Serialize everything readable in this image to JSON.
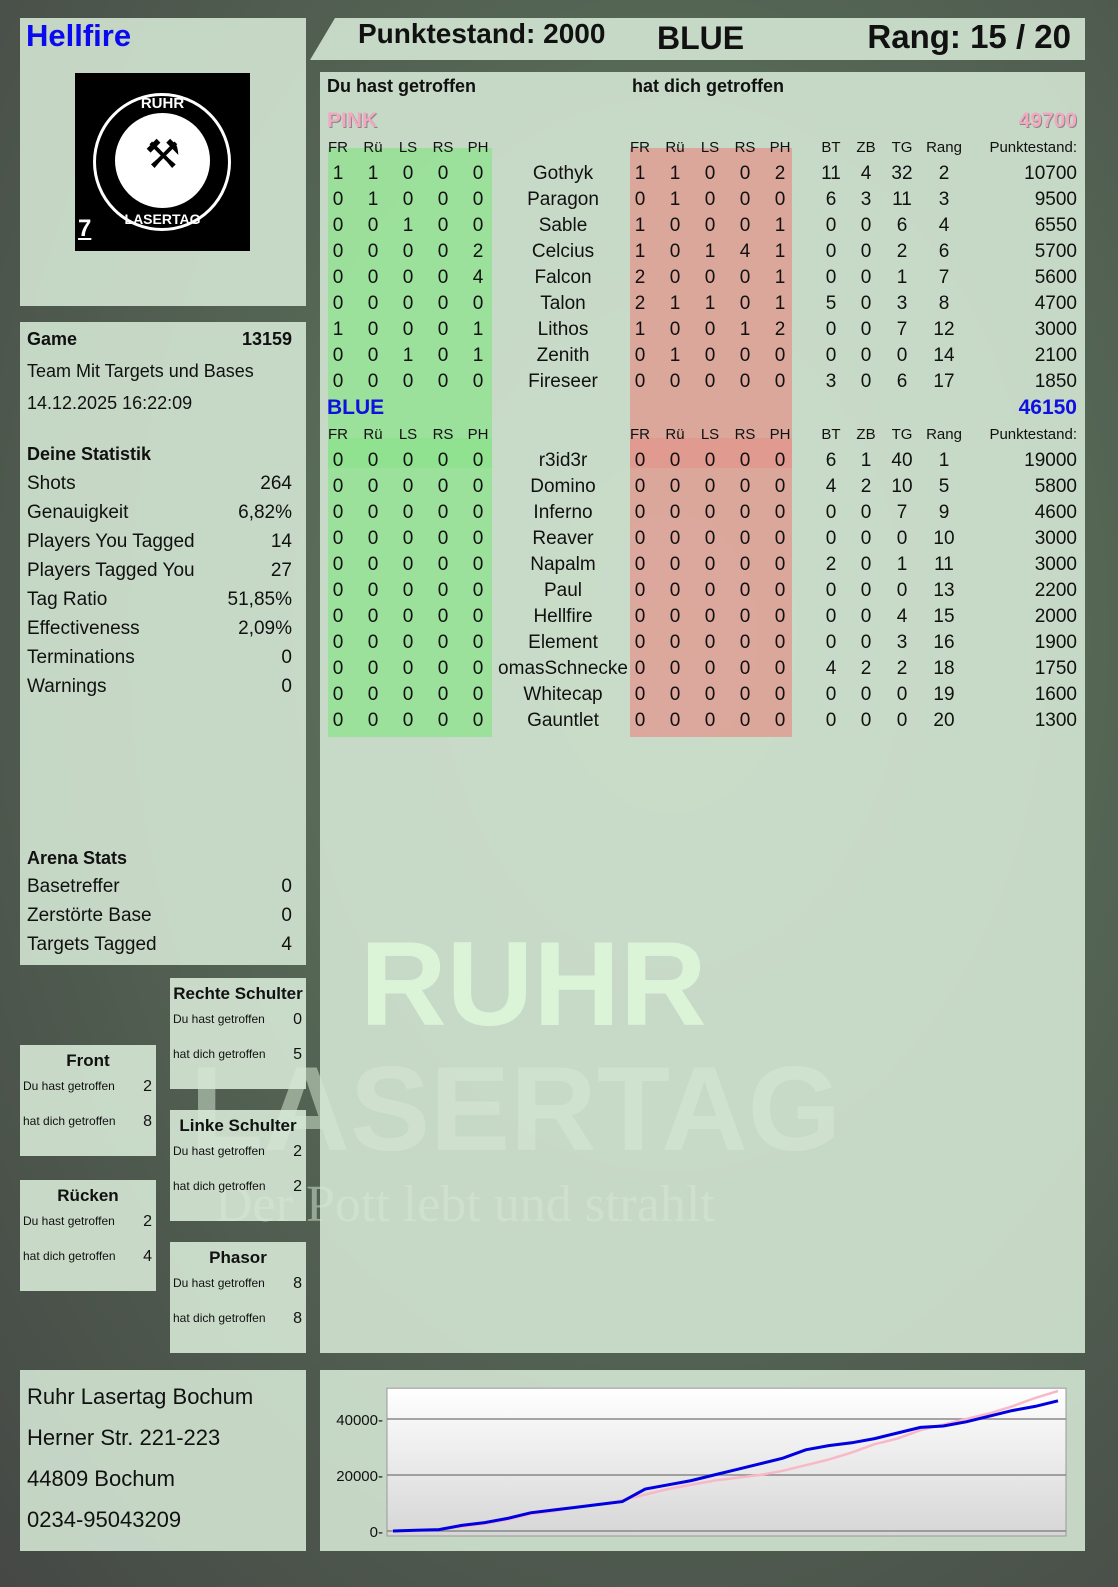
{
  "player": {
    "name": "Hellfire",
    "score_label": "Punktestand: 2000",
    "team": "BLUE",
    "rank_label": "Rang: 15 / 20"
  },
  "logo": {
    "top": "RUHR",
    "bottom": "LASERTAG",
    "badge": "7"
  },
  "watermark": {
    "line1": "RUHR",
    "line2": "LASERTAG",
    "slogan": "Der Pott lebt und strahlt"
  },
  "main": {
    "you_hit": "Du hast getroffen",
    "hit_you": "hat dich getroffen",
    "columns_hit": [
      "FR",
      "Rü",
      "LS",
      "RS",
      "PH"
    ],
    "columns_stats": [
      "BT",
      "ZB",
      "TG",
      "Rang",
      "Punktestand:"
    ],
    "teams": [
      {
        "name": "PINK",
        "total": "49700",
        "color": "#f2a8c0",
        "players": [
          [
            "1",
            "1",
            "0",
            "0",
            "0",
            "Gothyk",
            "1",
            "1",
            "0",
            "0",
            "2",
            "11",
            "4",
            "32",
            "2",
            "10700"
          ],
          [
            "0",
            "1",
            "0",
            "0",
            "0",
            "Paragon",
            "0",
            "1",
            "0",
            "0",
            "0",
            "6",
            "3",
            "11",
            "3",
            "9500"
          ],
          [
            "0",
            "0",
            "1",
            "0",
            "0",
            "Sable",
            "1",
            "0",
            "0",
            "0",
            "1",
            "0",
            "0",
            "6",
            "4",
            "6550"
          ],
          [
            "0",
            "0",
            "0",
            "0",
            "2",
            "Celcius",
            "1",
            "0",
            "1",
            "4",
            "1",
            "0",
            "0",
            "2",
            "6",
            "5700"
          ],
          [
            "0",
            "0",
            "0",
            "0",
            "4",
            "Falcon",
            "2",
            "0",
            "0",
            "0",
            "1",
            "0",
            "0",
            "1",
            "7",
            "5600"
          ],
          [
            "0",
            "0",
            "0",
            "0",
            "0",
            "Talon",
            "2",
            "1",
            "1",
            "0",
            "1",
            "5",
            "0",
            "3",
            "8",
            "4700"
          ],
          [
            "1",
            "0",
            "0",
            "0",
            "1",
            "Lithos",
            "1",
            "0",
            "0",
            "1",
            "2",
            "0",
            "0",
            "7",
            "12",
            "3000"
          ],
          [
            "0",
            "0",
            "1",
            "0",
            "1",
            "Zenith",
            "0",
            "1",
            "0",
            "0",
            "0",
            "0",
            "0",
            "0",
            "14",
            "2100"
          ],
          [
            "0",
            "0",
            "0",
            "0",
            "0",
            "Fireseer",
            "0",
            "0",
            "0",
            "0",
            "0",
            "3",
            "0",
            "6",
            "17",
            "1850"
          ]
        ]
      },
      {
        "name": "BLUE",
        "total": "46150",
        "color": "#1010e0",
        "players": [
          [
            "0",
            "0",
            "0",
            "0",
            "0",
            "r3id3r",
            "0",
            "0",
            "0",
            "0",
            "0",
            "6",
            "1",
            "40",
            "1",
            "19000"
          ],
          [
            "0",
            "0",
            "0",
            "0",
            "0",
            "Domino",
            "0",
            "0",
            "0",
            "0",
            "0",
            "4",
            "2",
            "10",
            "5",
            "5800"
          ],
          [
            "0",
            "0",
            "0",
            "0",
            "0",
            "Inferno",
            "0",
            "0",
            "0",
            "0",
            "0",
            "0",
            "0",
            "7",
            "9",
            "4600"
          ],
          [
            "0",
            "0",
            "0",
            "0",
            "0",
            "Reaver",
            "0",
            "0",
            "0",
            "0",
            "0",
            "0",
            "0",
            "0",
            "10",
            "3000"
          ],
          [
            "0",
            "0",
            "0",
            "0",
            "0",
            "Napalm",
            "0",
            "0",
            "0",
            "0",
            "0",
            "2",
            "0",
            "1",
            "11",
            "3000"
          ],
          [
            "0",
            "0",
            "0",
            "0",
            "0",
            "Paul",
            "0",
            "0",
            "0",
            "0",
            "0",
            "0",
            "0",
            "0",
            "13",
            "2200"
          ],
          [
            "0",
            "0",
            "0",
            "0",
            "0",
            "Hellfire",
            "0",
            "0",
            "0",
            "0",
            "0",
            "0",
            "0",
            "4",
            "15",
            "2000"
          ],
          [
            "0",
            "0",
            "0",
            "0",
            "0",
            "Element",
            "0",
            "0",
            "0",
            "0",
            "0",
            "0",
            "0",
            "3",
            "16",
            "1900"
          ],
          [
            "0",
            "0",
            "0",
            "0",
            "0",
            "omasSchnecke",
            "0",
            "0",
            "0",
            "0",
            "0",
            "4",
            "2",
            "2",
            "18",
            "1750"
          ],
          [
            "0",
            "0",
            "0",
            "0",
            "0",
            "Whitecap",
            "0",
            "0",
            "0",
            "0",
            "0",
            "0",
            "0",
            "0",
            "19",
            "1600"
          ],
          [
            "0",
            "0",
            "0",
            "0",
            "0",
            "Gauntlet",
            "0",
            "0",
            "0",
            "0",
            "0",
            "0",
            "0",
            "0",
            "20",
            "1300"
          ]
        ]
      }
    ]
  },
  "game": {
    "label": "Game",
    "id": "13159",
    "mode": "Team Mit Targets und Bases",
    "datetime": "14.12.2025 16:22:09"
  },
  "stats": {
    "title": "Deine Statistik",
    "items": [
      [
        "Shots",
        "264"
      ],
      [
        "Genauigkeit",
        "6,82%"
      ],
      [
        "Players You Tagged",
        "14"
      ],
      [
        "Players Tagged You",
        "27"
      ],
      [
        "Tag Ratio",
        "51,85%"
      ],
      [
        "Effectiveness",
        "2,09%"
      ],
      [
        "Terminations",
        "0"
      ],
      [
        "Warnings",
        "0"
      ]
    ]
  },
  "arena": {
    "title": "Arena Stats",
    "items": [
      [
        "Basetreffer",
        "0"
      ],
      [
        "Zerstörte Base",
        "0"
      ],
      [
        "Targets Tagged",
        "4"
      ]
    ]
  },
  "zones": [
    {
      "title": "Front",
      "you_hit_label": "Du hast getroffen",
      "you_hit": "2",
      "hit_you_label": "hat dich getroffen",
      "hit_you": "8"
    },
    {
      "title": "Rechte Schulter",
      "you_hit_label": "Du hast getroffen",
      "you_hit": "0",
      "hit_you_label": "hat dich getroffen",
      "hit_you": "5"
    },
    {
      "title": "Linke Schulter",
      "you_hit_label": "Du hast getroffen",
      "you_hit": "2",
      "hit_you_label": "hat dich getroffen",
      "hit_you": "2"
    },
    {
      "title": "Rücken",
      "you_hit_label": "Du hast getroffen",
      "you_hit": "2",
      "hit_you_label": "hat dich getroffen",
      "hit_you": "4"
    },
    {
      "title": "Phasor",
      "you_hit_label": "Du hast getroffen",
      "you_hit": "8",
      "hit_you_label": "hat dich getroffen",
      "hit_you": "8"
    }
  ],
  "address": [
    "Ruhr Lasertag Bochum",
    "Herner Str. 221-223",
    "44809 Bochum",
    "0234-95043209"
  ],
  "chart_data": {
    "type": "line",
    "ylim": [
      0,
      51000
    ],
    "yticks": [
      "0",
      "20000",
      "40000"
    ],
    "grid": true,
    "series": [
      {
        "color": "#f8b8c8",
        "values": [
          0,
          0,
          500,
          1500,
          2500,
          4000,
          6000,
          7000,
          8500,
          9500,
          11000,
          13000,
          15000,
          16500,
          18000,
          19000,
          20000,
          21500,
          23500,
          25500,
          28000,
          31000,
          33000,
          36000,
          38000,
          40000,
          42000,
          44500,
          47500,
          50000
        ]
      },
      {
        "color": "#0000e0",
        "values": [
          0,
          300,
          500,
          2000,
          3000,
          4500,
          6500,
          7500,
          8500,
          9500,
          10500,
          15000,
          16500,
          18000,
          20000,
          22000,
          24000,
          26000,
          29000,
          30500,
          31500,
          33000,
          35000,
          37000,
          37500,
          39000,
          41000,
          43000,
          44500,
          46500
        ]
      }
    ]
  }
}
